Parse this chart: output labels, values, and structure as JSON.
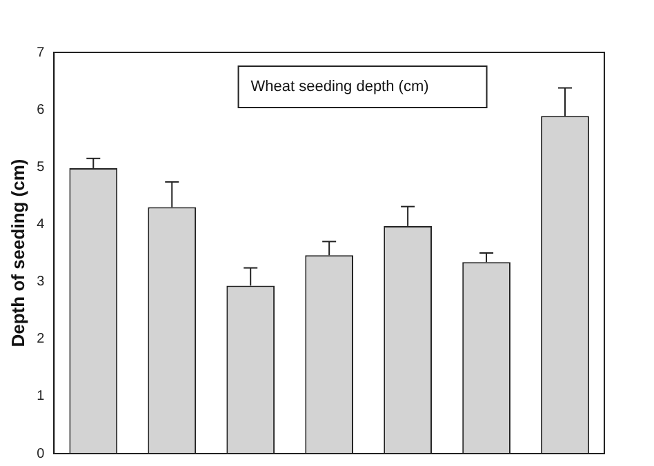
{
  "chart_data": {
    "type": "bar",
    "title": "Wheat seeding depth (cm)",
    "ylabel": "Depth of seeding (cm)",
    "categories": [
      null,
      null,
      null,
      null,
      null,
      null,
      null
    ],
    "values": [
      4.98,
      4.3,
      2.93,
      3.46,
      3.97,
      3.34,
      5.89
    ],
    "errors": [
      [
        4.98,
        5.15
      ],
      [
        4.3,
        4.74
      ],
      [
        2.93,
        3.24
      ],
      [
        3.46,
        3.7
      ],
      [
        3.97,
        4.31
      ],
      [
        3.34,
        3.5
      ],
      [
        5.89,
        6.38
      ]
    ],
    "color": "#d3d3d3",
    "ylim": [
      0,
      7
    ],
    "yticks": [
      0,
      1,
      2,
      3,
      4,
      5,
      6,
      7
    ],
    "grid": false,
    "legend": false
  }
}
